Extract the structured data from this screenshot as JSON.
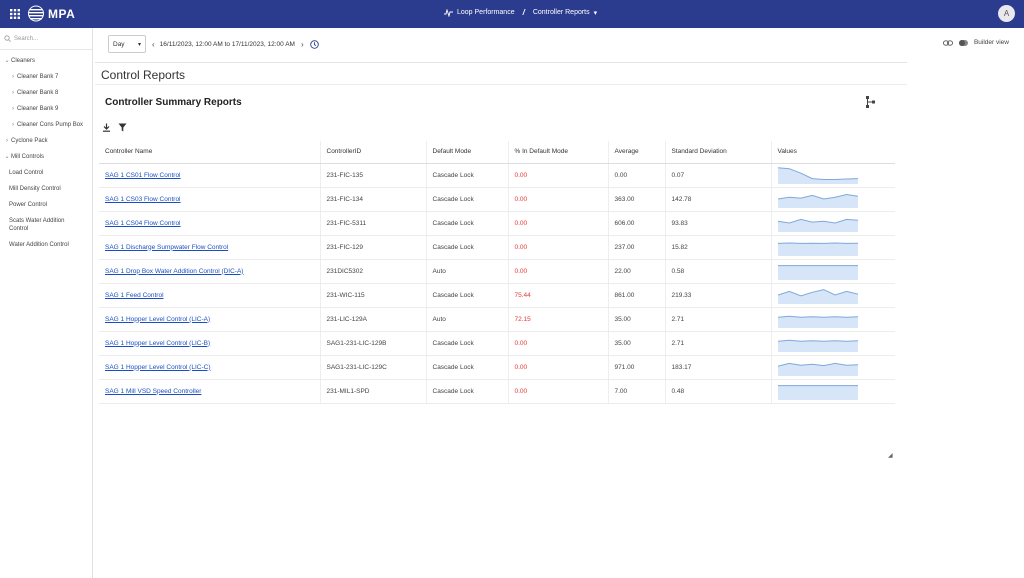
{
  "header": {
    "app_name": "MPA",
    "breadcrumb_1": "Loop Performance",
    "breadcrumb_sep": "/",
    "breadcrumb_2": "Controller Reports",
    "avatar_initial": "A"
  },
  "sidebar": {
    "search_placeholder": "Search...",
    "items": [
      {
        "label": "Cleaners",
        "chev": "⌄"
      },
      {
        "label": "Cleaner Bank 7",
        "chev": "›"
      },
      {
        "label": "Cleaner Bank 8",
        "chev": "›"
      },
      {
        "label": "Cleaner Bank 9",
        "chev": "›"
      },
      {
        "label": "Cleaner Cons Pump Box",
        "chev": "›"
      },
      {
        "label": "Cyclone Pack",
        "chev": "›"
      },
      {
        "label": "Mill Controls",
        "chev": "⌄"
      },
      {
        "label": "Load Control"
      },
      {
        "label": "Mill Density Control"
      },
      {
        "label": "Power Control"
      },
      {
        "label": "Scats Water Addition Control"
      },
      {
        "label": "Water Addition Control"
      }
    ]
  },
  "toolbar": {
    "range_value": "Day",
    "date_range": "16/11/2023, 12:00 AM to 17/11/2023, 12:00 AM",
    "builder_view_label": "Builder view"
  },
  "page": {
    "title": "Control Reports",
    "card_title": "Controller Summary Reports"
  },
  "table": {
    "headers": [
      "Controller Name",
      "ControllerID",
      "Default Mode",
      "% In Default Mode",
      "Average",
      "Standard Deviation",
      "Values"
    ],
    "rows": [
      {
        "name": "SAG 1 CS01 Flow Control",
        "id": "231-FIC-135",
        "mode": "Cascade Lock",
        "pct": "0.00",
        "avg": "0.00",
        "sd": "0.07"
      },
      {
        "name": "SAG 1 CS03 Flow Control",
        "id": "231-FIC-134",
        "mode": "Cascade Lock",
        "pct": "0.00",
        "avg": "363.00",
        "sd": "142.78"
      },
      {
        "name": "SAG 1 CS04 Flow Control",
        "id": "231-FIC-5311",
        "mode": "Cascade Lock",
        "pct": "0.00",
        "avg": "606.00",
        "sd": "93.83"
      },
      {
        "name": "SAG 1 Discharge Sumpwater Flow Control",
        "id": "231-FIC-129",
        "mode": "Cascade Lock",
        "pct": "0.00",
        "avg": "237.00",
        "sd": "15.82"
      },
      {
        "name": "SAG 1 Drop Box Water Addition Control (DIC-A)",
        "id": "231DIC5302",
        "mode": "Auto",
        "pct": "0.00",
        "avg": "22.00",
        "sd": "0.58"
      },
      {
        "name": "SAG 1 Feed Control",
        "id": "231-WIC-115",
        "mode": "Cascade Lock",
        "pct": "75.44",
        "avg": "861.00",
        "sd": "219.33"
      },
      {
        "name": "SAG 1 Hopper Level Control (LIC-A)",
        "id": "231-LIC-129A",
        "mode": "Auto",
        "pct": "72.15",
        "avg": "35.00",
        "sd": "2.71"
      },
      {
        "name": "SAG 1 Hopper Level Control (LIC-B)",
        "id": "SAG1-231-LIC-129B",
        "mode": "Cascade Lock",
        "pct": "0.00",
        "avg": "35.00",
        "sd": "2.71"
      },
      {
        "name": "SAG 1 Hopper Level Control (LIC-C)",
        "id": "SAG1-231-LIC-129C",
        "mode": "Cascade Lock",
        "pct": "0.00",
        "avg": "971.00",
        "sd": "183.17"
      },
      {
        "name": "SAG 1 Mill VSD Speed Controller",
        "id": "231-MIL1-SPD",
        "mode": "Cascade Lock",
        "pct": "0.00",
        "avg": "7.00",
        "sd": "0.48"
      }
    ],
    "sparklines": [
      [
        0.9,
        0.85,
        0.6,
        0.3,
        0.25,
        0.25,
        0.28,
        0.3
      ],
      [
        0.5,
        0.6,
        0.55,
        0.7,
        0.5,
        0.6,
        0.75,
        0.65
      ],
      [
        0.6,
        0.5,
        0.7,
        0.55,
        0.6,
        0.5,
        0.7,
        0.65
      ],
      [
        0.7,
        0.72,
        0.7,
        0.71,
        0.7,
        0.72,
        0.7,
        0.71
      ],
      [
        0.8,
        0.8,
        0.8,
        0.8,
        0.8,
        0.8,
        0.8,
        0.8
      ],
      [
        0.5,
        0.7,
        0.45,
        0.65,
        0.8,
        0.5,
        0.7,
        0.55
      ],
      [
        0.6,
        0.65,
        0.6,
        0.62,
        0.6,
        0.63,
        0.6,
        0.62
      ],
      [
        0.6,
        0.65,
        0.6,
        0.62,
        0.6,
        0.63,
        0.6,
        0.62
      ],
      [
        0.55,
        0.7,
        0.6,
        0.65,
        0.58,
        0.7,
        0.6,
        0.62
      ],
      [
        0.8,
        0.8,
        0.8,
        0.8,
        0.8,
        0.8,
        0.8,
        0.8
      ]
    ],
    "pct_red_color": "#e53935",
    "spark_color": "#7fa8dc",
    "spark_fill": "#d6e5f7"
  }
}
